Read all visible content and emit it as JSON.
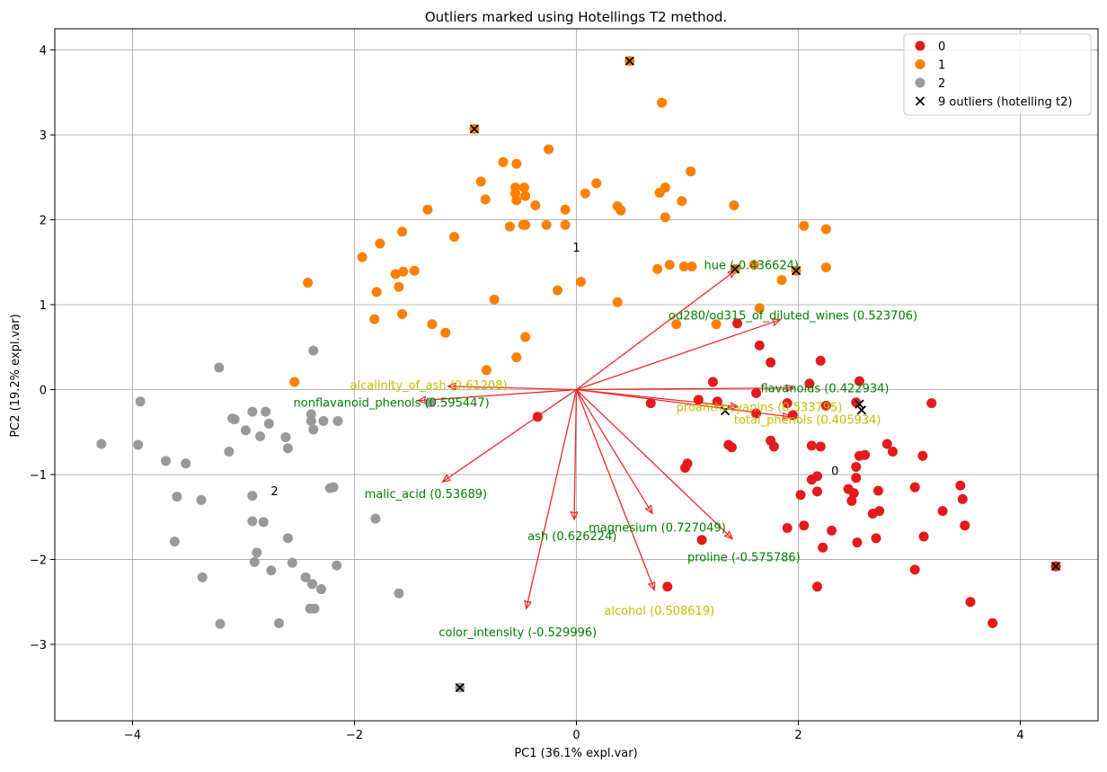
{
  "chart_data": {
    "type": "scatter",
    "title": "Outliers marked using Hotellings T2 method.",
    "xlabel": "PC1 (36.1% expl.var)",
    "ylabel": "PC2 (19.2% expl.var)",
    "xlim": [
      -4.7,
      4.7
    ],
    "ylim": [
      -3.9,
      4.25
    ],
    "xticks": [
      -4,
      -2,
      0,
      2,
      4
    ],
    "yticks": [
      -3,
      -2,
      -1,
      0,
      1,
      2,
      3,
      4
    ],
    "grid": true,
    "legend_position": "top-right",
    "series": [
      {
        "name": "0",
        "color": "#e41a1c",
        "points": [
          [
            1.45,
            0.78
          ],
          [
            1.65,
            0.52
          ],
          [
            1.75,
            0.32
          ],
          [
            2.2,
            0.34
          ],
          [
            2.55,
            0.1
          ],
          [
            1.23,
            0.09
          ],
          [
            2.1,
            0.07
          ],
          [
            1.62,
            -0.04
          ],
          [
            1.1,
            -0.12
          ],
          [
            1.27,
            -0.14
          ],
          [
            1.9,
            -0.16
          ],
          [
            2.25,
            -0.19
          ],
          [
            3.2,
            -0.16
          ],
          [
            2.52,
            -0.15
          ],
          [
            0.67,
            -0.16
          ],
          [
            -0.35,
            -0.32
          ],
          [
            1.62,
            -0.28
          ],
          [
            1.95,
            -0.3
          ],
          [
            1.37,
            -0.65
          ],
          [
            1.4,
            -0.68
          ],
          [
            1.75,
            -0.6
          ],
          [
            1.78,
            -0.67
          ],
          [
            2.12,
            -0.66
          ],
          [
            2.2,
            -0.67
          ],
          [
            2.8,
            -0.64
          ],
          [
            2.85,
            -0.73
          ],
          [
            2.55,
            -0.78
          ],
          [
            2.6,
            -0.77
          ],
          [
            3.12,
            -0.78
          ],
          [
            1.0,
            -0.87
          ],
          [
            0.98,
            -0.92
          ],
          [
            2.52,
            -0.91
          ],
          [
            2.17,
            -1.02
          ],
          [
            2.12,
            -1.06
          ],
          [
            2.52,
            -1.04
          ],
          [
            2.45,
            -1.17
          ],
          [
            2.5,
            -1.22
          ],
          [
            2.48,
            -1.31
          ],
          [
            3.05,
            -1.15
          ],
          [
            2.72,
            -1.19
          ],
          [
            3.46,
            -1.13
          ],
          [
            2.02,
            -1.24
          ],
          [
            2.17,
            -1.2
          ],
          [
            3.48,
            -1.29
          ],
          [
            2.67,
            -1.46
          ],
          [
            2.73,
            -1.43
          ],
          [
            3.3,
            -1.43
          ],
          [
            2.05,
            -1.6
          ],
          [
            1.9,
            -1.63
          ],
          [
            2.3,
            -1.66
          ],
          [
            3.5,
            -1.6
          ],
          [
            1.13,
            -1.77
          ],
          [
            2.22,
            -1.86
          ],
          [
            2.53,
            -1.8
          ],
          [
            2.7,
            -1.75
          ],
          [
            3.13,
            -1.73
          ],
          [
            3.05,
            -2.12
          ],
          [
            2.17,
            -2.32
          ],
          [
            3.55,
            -2.5
          ],
          [
            3.75,
            -2.75
          ],
          [
            4.32,
            -2.08
          ],
          [
            0.82,
            -2.32
          ]
        ]
      },
      {
        "name": "1",
        "color": "#ff7f00",
        "points": [
          [
            0.48,
            3.87
          ],
          [
            -0.92,
            3.07
          ],
          [
            0.77,
            3.38
          ],
          [
            -0.25,
            2.83
          ],
          [
            -0.66,
            2.68
          ],
          [
            -0.54,
            2.66
          ],
          [
            1.03,
            2.57
          ],
          [
            -0.86,
            2.45
          ],
          [
            0.18,
            2.43
          ],
          [
            -0.55,
            2.38
          ],
          [
            -0.47,
            2.38
          ],
          [
            0.8,
            2.38
          ],
          [
            -0.55,
            2.31
          ],
          [
            -0.46,
            2.28
          ],
          [
            0.75,
            2.32
          ],
          [
            0.08,
            2.31
          ],
          [
            -0.82,
            2.24
          ],
          [
            -0.54,
            2.23
          ],
          [
            0.95,
            2.22
          ],
          [
            1.42,
            2.17
          ],
          [
            -0.37,
            2.17
          ],
          [
            0.37,
            2.16
          ],
          [
            -1.34,
            2.12
          ],
          [
            -0.1,
            2.12
          ],
          [
            0.4,
            2.11
          ],
          [
            0.8,
            2.03
          ],
          [
            -0.48,
            1.94
          ],
          [
            -0.46,
            1.94
          ],
          [
            -0.27,
            1.94
          ],
          [
            -0.1,
            1.94
          ],
          [
            -0.6,
            1.92
          ],
          [
            2.05,
            1.93
          ],
          [
            2.25,
            1.89
          ],
          [
            -1.1,
            1.8
          ],
          [
            -1.57,
            1.86
          ],
          [
            -1.77,
            1.72
          ],
          [
            -1.93,
            1.56
          ],
          [
            0.73,
            1.42
          ],
          [
            1.43,
            1.42
          ],
          [
            0.84,
            1.47
          ],
          [
            0.97,
            1.45
          ],
          [
            1.04,
            1.45
          ],
          [
            1.6,
            1.47
          ],
          [
            1.98,
            1.4
          ],
          [
            2.25,
            1.44
          ],
          [
            -1.46,
            1.4
          ],
          [
            -1.56,
            1.39
          ],
          [
            -1.63,
            1.36
          ],
          [
            -2.42,
            1.26
          ],
          [
            0.04,
            1.27
          ],
          [
            1.85,
            1.29
          ],
          [
            -1.6,
            1.21
          ],
          [
            -1.8,
            1.15
          ],
          [
            -0.17,
            1.17
          ],
          [
            -0.74,
            1.06
          ],
          [
            0.37,
            1.03
          ],
          [
            1.65,
            0.96
          ],
          [
            -1.82,
            0.83
          ],
          [
            -1.57,
            0.89
          ],
          [
            -1.3,
            0.77
          ],
          [
            0.9,
            0.77
          ],
          [
            1.26,
            0.77
          ],
          [
            -1.18,
            0.67
          ],
          [
            -0.46,
            0.62
          ],
          [
            -0.54,
            0.38
          ],
          [
            -0.81,
            0.23
          ],
          [
            -2.54,
            0.09
          ]
        ]
      },
      {
        "name": "2",
        "color": "#999999",
        "points": [
          [
            -3.22,
            0.26
          ],
          [
            -2.37,
            0.46
          ],
          [
            -3.93,
            -0.14
          ],
          [
            -1.32,
            -0.15
          ],
          [
            -2.8,
            -0.26
          ],
          [
            -2.92,
            -0.26
          ],
          [
            -3.1,
            -0.34
          ],
          [
            -3.08,
            -0.35
          ],
          [
            -2.39,
            -0.29
          ],
          [
            -2.28,
            -0.37
          ],
          [
            -2.39,
            -0.37
          ],
          [
            -2.15,
            -0.37
          ],
          [
            -2.77,
            -0.4
          ],
          [
            -2.98,
            -0.48
          ],
          [
            -2.37,
            -0.47
          ],
          [
            -2.85,
            -0.55
          ],
          [
            -2.62,
            -0.56
          ],
          [
            -4.28,
            -0.64
          ],
          [
            -3.95,
            -0.65
          ],
          [
            -2.6,
            -0.69
          ],
          [
            -3.13,
            -0.73
          ],
          [
            -3.7,
            -0.84
          ],
          [
            -3.52,
            -0.87
          ],
          [
            -2.22,
            -1.16
          ],
          [
            -2.19,
            -1.15
          ],
          [
            -3.6,
            -1.26
          ],
          [
            -2.92,
            -1.25
          ],
          [
            -3.38,
            -1.3
          ],
          [
            -2.92,
            -1.55
          ],
          [
            -2.82,
            -1.56
          ],
          [
            -1.81,
            -1.52
          ],
          [
            -2.6,
            -1.75
          ],
          [
            -3.62,
            -1.79
          ],
          [
            -2.88,
            -1.92
          ],
          [
            -2.9,
            -2.03
          ],
          [
            -2.56,
            -2.04
          ],
          [
            -2.75,
            -2.13
          ],
          [
            -2.16,
            -2.07
          ],
          [
            -3.37,
            -2.21
          ],
          [
            -2.44,
            -2.21
          ],
          [
            -2.38,
            -2.29
          ],
          [
            -2.3,
            -2.35
          ],
          [
            -1.6,
            -2.4
          ],
          [
            -2.4,
            -2.58
          ],
          [
            -2.36,
            -2.58
          ],
          [
            -2.68,
            -2.75
          ],
          [
            -3.21,
            -2.76
          ],
          [
            -1.05,
            -3.51
          ]
        ]
      }
    ],
    "outliers": {
      "name": "9 outliers (hotelling t2)",
      "marker": "x",
      "points": [
        [
          0.48,
          3.87
        ],
        [
          -0.92,
          3.07
        ],
        [
          1.43,
          1.42
        ],
        [
          1.98,
          1.4
        ],
        [
          2.55,
          -0.17
        ],
        [
          2.57,
          -0.24
        ],
        [
          1.34,
          -0.25
        ],
        [
          4.32,
          -2.08
        ],
        [
          -1.05,
          -3.51
        ]
      ]
    },
    "loadings": [
      {
        "label": "hue (-0.436624)",
        "dx": 1.43,
        "dy": 1.4,
        "tx": 1.15,
        "ty": 1.47,
        "color": "#008000"
      },
      {
        "label": "od280/od315_of_diluted_wines (0.523706)",
        "dx": 1.83,
        "dy": 0.82,
        "tx": 0.83,
        "ty": 0.88,
        "color": "#008000"
      },
      {
        "label": "flavanoids (0.422934)",
        "dx": 1.95,
        "dy": 0.02,
        "tx": 1.66,
        "ty": 0.02,
        "color": "#008000"
      },
      {
        "label": "proanthocyanins (0.533795)",
        "dx": 1.45,
        "dy": -0.2,
        "tx": 0.9,
        "ty": -0.2,
        "color": "#bfbf00"
      },
      {
        "label": "total_phenols (0.405934)",
        "dx": 1.92,
        "dy": -0.32,
        "tx": 1.42,
        "ty": -0.35,
        "color": "#bfbf00"
      },
      {
        "label": "alcalinity_of_ash (0.61208)",
        "dx": -1.15,
        "dy": 0.04,
        "tx": -2.04,
        "ty": 0.06,
        "color": "#bfbf00"
      },
      {
        "label": "nonflavanoid_phenols (0.595447)",
        "dx": -1.42,
        "dy": -0.13,
        "tx": -2.55,
        "ty": -0.15,
        "color": "#008000"
      },
      {
        "label": "malic_acid (0.53689)",
        "dx": -1.2,
        "dy": -1.08,
        "tx": -1.91,
        "ty": -1.22,
        "color": "#008000"
      },
      {
        "label": "ash (0.626224)",
        "dx": -0.02,
        "dy": -1.52,
        "tx": -0.44,
        "ty": -1.72,
        "color": "#008000"
      },
      {
        "label": "magnesium (0.727049)",
        "dx": 0.68,
        "dy": -1.45,
        "tx": 0.11,
        "ty": -1.62,
        "color": "#008000"
      },
      {
        "label": "proline (-0.575786)",
        "dx": 1.4,
        "dy": -1.75,
        "tx": 1.0,
        "ty": -1.97,
        "color": "#008000"
      },
      {
        "label": "alcohol (0.508619)",
        "dx": 0.7,
        "dy": -2.35,
        "tx": 0.25,
        "ty": -2.6,
        "color": "#bfbf00"
      },
      {
        "label": "color_intensity (-0.529996)",
        "dx": -0.45,
        "dy": -2.57,
        "tx": -1.24,
        "ty": -2.85,
        "color": "#008000"
      }
    ],
    "arrow_color": "#ee2a2a",
    "cluster_labels": [
      {
        "text": "1",
        "x": 0.0,
        "y": 1.68
      },
      {
        "text": "0",
        "x": 2.33,
        "y": -0.95
      },
      {
        "text": "2",
        "x": -2.72,
        "y": -1.19
      }
    ]
  }
}
